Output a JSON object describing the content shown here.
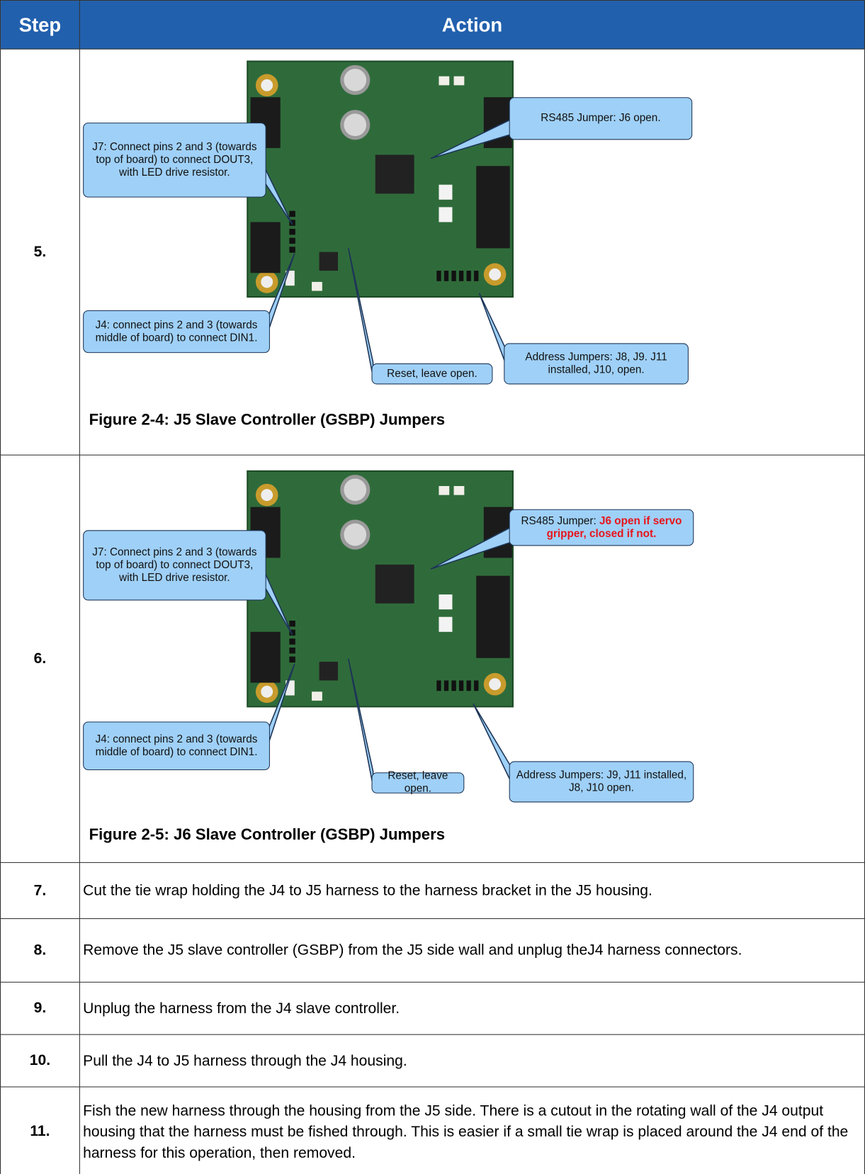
{
  "header": {
    "step": "Step",
    "action": "Action"
  },
  "figure_rows": [
    {
      "step": "5.",
      "callouts": [
        {
          "text": "J7: Connect pins 2 and 3 (towards top of board) to connect DOUT3, with LED drive resistor."
        },
        {
          "text": "RS485 Jumper: J6 open."
        },
        {
          "text": "J4: connect pins 2 and 3 (towards middle of board) to connect DIN1."
        },
        {
          "text": "Reset, leave open."
        },
        {
          "text": "Address Jumpers: J8, J9. J11 installed, J10, open."
        }
      ],
      "caption": "Figure 2-4: J5 Slave Controller (GSBP) Jumpers"
    },
    {
      "step": "6.",
      "callouts": [
        {
          "text": "J7: Connect pins 2 and 3 (towards top of board) to connect DOUT3, with LED drive resistor."
        },
        {
          "text": "RS485 Jumper: ",
          "emphasis": "J6 open if servo gripper, closed if not."
        },
        {
          "text": "J4: connect pins 2 and 3 (towards middle of board) to connect DIN1."
        },
        {
          "text": "Reset, leave open."
        },
        {
          "text": "Address Jumpers: J9, J11 installed, J8, J10 open."
        }
      ],
      "caption": "Figure 2-5: J6 Slave Controller (GSBP) Jumpers"
    }
  ],
  "text_rows": [
    {
      "step": "7.",
      "action": "Cut the tie wrap holding the J4 to J5 harness to the harness bracket in the J5 housing."
    },
    {
      "step": "8.",
      "action": "Remove the J5 slave controller (GSBP) from the J5 side wall and unplug theJ4 harness connectors."
    },
    {
      "step": "9.",
      "action": "Unplug the harness from the J4 slave controller."
    },
    {
      "step": "10.",
      "action": "Pull the J4 to J5 harness through the J4 housing."
    },
    {
      "step": "11.",
      "action": "Fish the new harness through the housing from the J5 side. There is a cutout in the rotating wall of the J4 output housing that the harness must be fished through. This is easier if a small tie wrap is placed around the J4 end of the harness for this operation, then removed."
    }
  ]
}
